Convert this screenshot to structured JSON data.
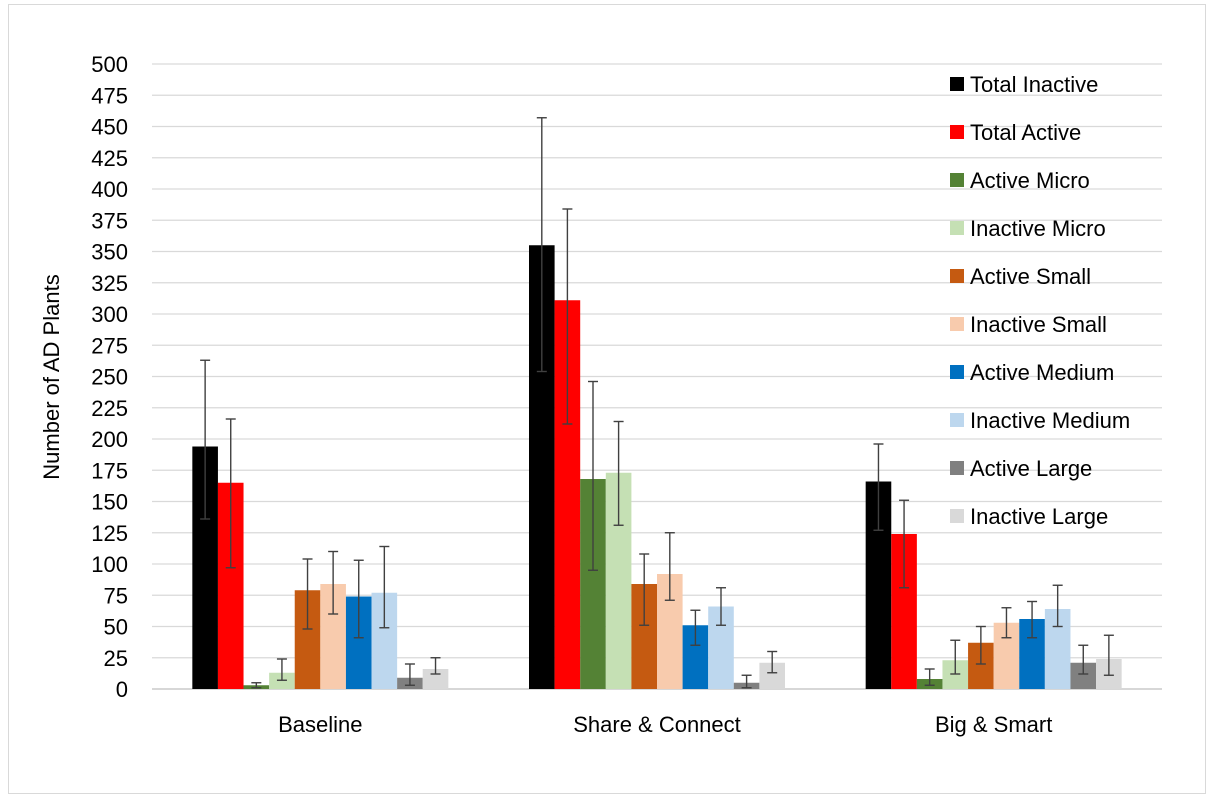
{
  "chart_data": {
    "type": "bar",
    "title": "",
    "xlabel": "",
    "ylabel": "Number of AD Plants",
    "ylim": [
      0,
      500
    ],
    "ytick_step": 25,
    "grid": true,
    "legend_position": "right",
    "categories": [
      "Baseline",
      "Share & Connect",
      "Big & Smart"
    ],
    "series": [
      {
        "name": "Total Inactive",
        "color": "#000000",
        "values": [
          194,
          355,
          166
        ],
        "err_low": [
          136,
          254,
          127
        ],
        "err_high": [
          263,
          457,
          196
        ]
      },
      {
        "name": "Total Active",
        "color": "#ff0000",
        "values": [
          165,
          311,
          124
        ],
        "err_low": [
          97,
          212,
          81
        ],
        "err_high": [
          216,
          384,
          151
        ]
      },
      {
        "name": "Active Micro",
        "color": "#548235",
        "values": [
          3,
          168,
          8
        ],
        "err_low": [
          1,
          95,
          3
        ],
        "err_high": [
          5,
          246,
          16
        ]
      },
      {
        "name": "Inactive Micro",
        "color": "#c5e0b4",
        "values": [
          13,
          173,
          23
        ],
        "err_low": [
          7,
          131,
          12
        ],
        "err_high": [
          24,
          214,
          39
        ]
      },
      {
        "name": "Active Small",
        "color": "#c55a11",
        "values": [
          79,
          84,
          37
        ],
        "err_low": [
          48,
          51,
          20
        ],
        "err_high": [
          104,
          108,
          50
        ]
      },
      {
        "name": "Inactive Small",
        "color": "#f8cbad",
        "values": [
          84,
          92,
          53
        ],
        "err_low": [
          60,
          71,
          41
        ],
        "err_high": [
          110,
          125,
          65
        ]
      },
      {
        "name": "Active Medium",
        "color": "#0070c0",
        "values": [
          74,
          51,
          56
        ],
        "err_low": [
          41,
          35,
          41
        ],
        "err_high": [
          103,
          63,
          70
        ]
      },
      {
        "name": "Inactive Medium",
        "color": "#bdd7ee",
        "values": [
          77,
          66,
          64
        ],
        "err_low": [
          49,
          51,
          50
        ],
        "err_high": [
          114,
          81,
          83
        ]
      },
      {
        "name": "Active Large",
        "color": "#808080",
        "values": [
          9,
          5,
          21
        ],
        "err_low": [
          3,
          1,
          12
        ],
        "err_high": [
          20,
          11,
          35
        ]
      },
      {
        "name": "Inactive Large",
        "color": "#d9d9d9",
        "values": [
          16,
          21,
          24
        ],
        "err_low": [
          12,
          13,
          11
        ],
        "err_high": [
          25,
          30,
          43
        ]
      }
    ]
  }
}
